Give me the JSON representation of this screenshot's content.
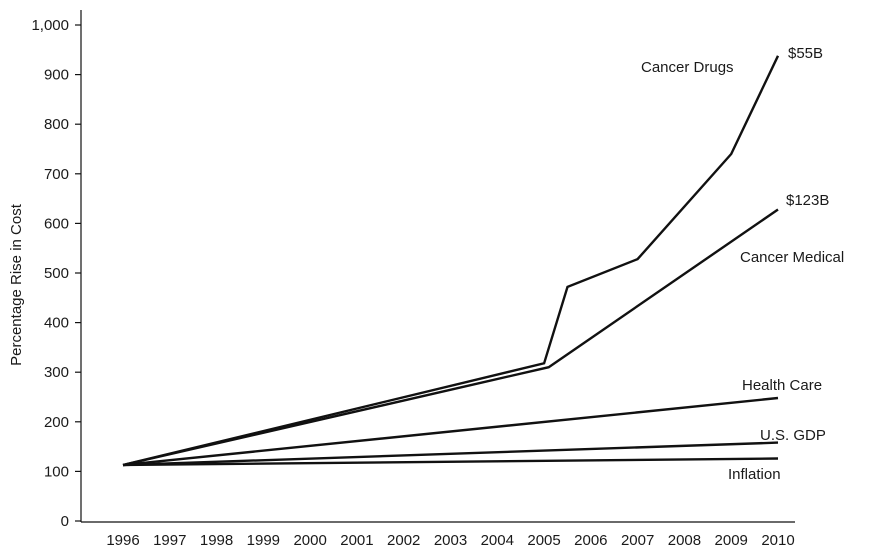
{
  "chart_data": {
    "type": "line",
    "title": "",
    "xlabel": "",
    "ylabel": "Percentage Rise in Cost",
    "ylim": [
      0,
      1000
    ],
    "yticks": [
      0,
      100,
      200,
      300,
      400,
      500,
      600,
      700,
      800,
      900,
      1000
    ],
    "ytick_labels": [
      "0",
      "100",
      "200",
      "300",
      "400",
      "500",
      "600",
      "700",
      "800",
      "900",
      "1,000"
    ],
    "xticks": [
      1996,
      1997,
      1998,
      1999,
      2000,
      2001,
      2002,
      2003,
      2004,
      2005,
      2006,
      2007,
      2008,
      2009,
      2010
    ],
    "grid": false,
    "legend": "none",
    "line_color": "#111111",
    "series": [
      {
        "name": "Cancer Drugs",
        "end_label": "$55B",
        "x": [
          1996,
          2005,
          2005.5,
          2007,
          2009,
          2010
        ],
        "y": [
          113,
          318,
          472,
          528,
          740,
          938
        ]
      },
      {
        "name": "Cancer Medical",
        "end_label": "$123B",
        "x": [
          1996,
          2005.1,
          2010
        ],
        "y": [
          113,
          310,
          628
        ]
      },
      {
        "name": "Health Care",
        "end_label": "",
        "x": [
          1996,
          2010
        ],
        "y": [
          113,
          248
        ]
      },
      {
        "name": "U.S. GDP",
        "end_label": "",
        "x": [
          1996,
          2010
        ],
        "y": [
          113,
          158
        ]
      },
      {
        "name": "Inflation",
        "end_label": "",
        "x": [
          1996,
          2010
        ],
        "y": [
          113,
          126
        ]
      }
    ]
  }
}
